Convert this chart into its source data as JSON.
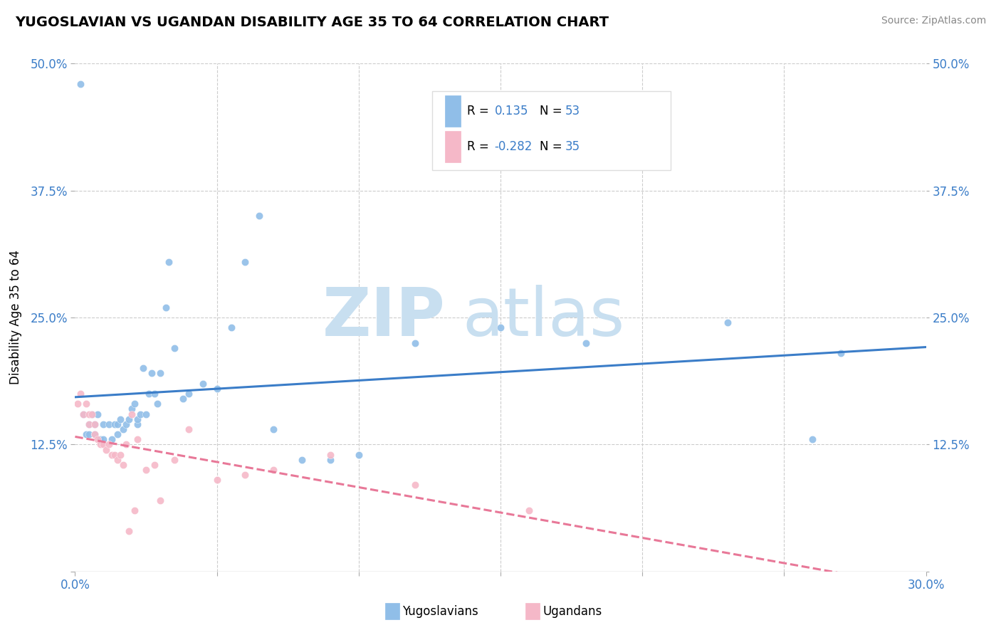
{
  "title": "YUGOSLAVIAN VS UGANDAN DISABILITY AGE 35 TO 64 CORRELATION CHART",
  "source": "Source: ZipAtlas.com",
  "ylabel": "Disability Age 35 to 64",
  "xlim": [
    0.0,
    0.3
  ],
  "ylim": [
    0.0,
    0.5
  ],
  "xticks": [
    0.0,
    0.05,
    0.1,
    0.15,
    0.2,
    0.25,
    0.3
  ],
  "xticklabels": [
    "0.0%",
    "",
    "",
    "",
    "",
    "",
    "30.0%"
  ],
  "yticks": [
    0.0,
    0.125,
    0.25,
    0.375,
    0.5
  ],
  "yticklabels": [
    "",
    "12.5%",
    "25.0%",
    "37.5%",
    "50.0%"
  ],
  "blue_color": "#90BEE8",
  "pink_color": "#F5B8C8",
  "blue_line_color": "#3B7DC8",
  "pink_line_color": "#E87898",
  "grid_color": "#CCCCCC",
  "watermark_zip": "ZIP",
  "watermark_atlas": "atlas",
  "watermark_color": "#C8DFF0",
  "blue_R": "0.135",
  "blue_N": "53",
  "pink_R": "-0.282",
  "pink_N": "35",
  "yug_x": [
    0.002,
    0.003,
    0.004,
    0.005,
    0.005,
    0.006,
    0.007,
    0.007,
    0.008,
    0.009,
    0.01,
    0.01,
    0.012,
    0.013,
    0.014,
    0.015,
    0.015,
    0.016,
    0.017,
    0.018,
    0.019,
    0.02,
    0.021,
    0.022,
    0.022,
    0.023,
    0.024,
    0.025,
    0.026,
    0.027,
    0.028,
    0.029,
    0.03,
    0.032,
    0.033,
    0.035,
    0.038,
    0.04,
    0.045,
    0.05,
    0.055,
    0.06,
    0.065,
    0.07,
    0.08,
    0.09,
    0.1,
    0.12,
    0.15,
    0.18,
    0.23,
    0.26,
    0.27
  ],
  "yug_y": [
    0.48,
    0.155,
    0.135,
    0.145,
    0.135,
    0.155,
    0.145,
    0.135,
    0.155,
    0.13,
    0.145,
    0.13,
    0.145,
    0.13,
    0.145,
    0.135,
    0.145,
    0.15,
    0.14,
    0.145,
    0.15,
    0.16,
    0.165,
    0.145,
    0.15,
    0.155,
    0.2,
    0.155,
    0.175,
    0.195,
    0.175,
    0.165,
    0.195,
    0.26,
    0.305,
    0.22,
    0.17,
    0.175,
    0.185,
    0.18,
    0.24,
    0.305,
    0.35,
    0.14,
    0.11,
    0.11,
    0.115,
    0.225,
    0.24,
    0.225,
    0.245,
    0.13,
    0.215
  ],
  "uga_x": [
    0.001,
    0.002,
    0.003,
    0.004,
    0.005,
    0.005,
    0.006,
    0.007,
    0.007,
    0.008,
    0.009,
    0.01,
    0.011,
    0.012,
    0.013,
    0.014,
    0.015,
    0.016,
    0.017,
    0.018,
    0.019,
    0.02,
    0.021,
    0.022,
    0.025,
    0.028,
    0.03,
    0.035,
    0.04,
    0.05,
    0.06,
    0.07,
    0.09,
    0.12,
    0.16
  ],
  "uga_y": [
    0.165,
    0.175,
    0.155,
    0.165,
    0.155,
    0.145,
    0.155,
    0.145,
    0.135,
    0.13,
    0.125,
    0.125,
    0.12,
    0.125,
    0.115,
    0.115,
    0.11,
    0.115,
    0.105,
    0.125,
    0.04,
    0.155,
    0.06,
    0.13,
    0.1,
    0.105,
    0.07,
    0.11,
    0.14,
    0.09,
    0.095,
    0.1,
    0.115,
    0.085,
    0.06
  ]
}
